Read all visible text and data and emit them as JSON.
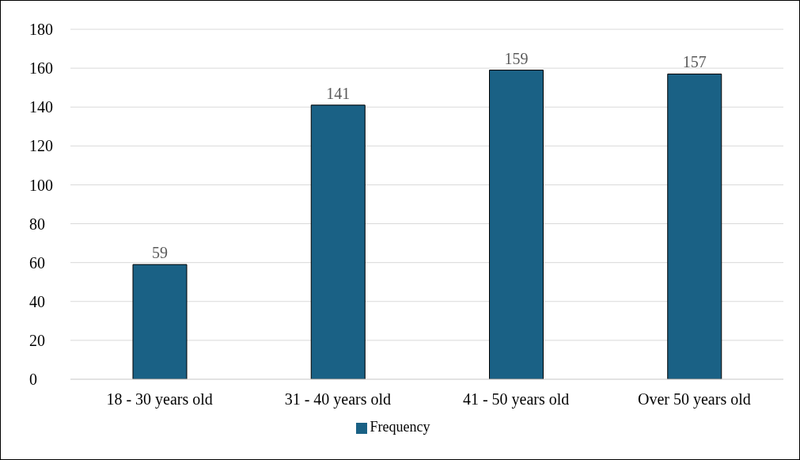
{
  "chart_data": {
    "type": "bar",
    "categories": [
      "18 - 30 years old",
      "31 - 40 years old",
      "41 - 50 years old",
      "Over 50 years old"
    ],
    "series": [
      {
        "name": "Frequency",
        "color": "#1a6185",
        "values": [
          59,
          141,
          159,
          157
        ]
      }
    ],
    "ylim": [
      0,
      180
    ],
    "yticks": [
      0,
      20,
      40,
      60,
      80,
      100,
      120,
      140,
      160,
      180
    ],
    "grid": "y",
    "legend": "bottom",
    "data_labels": true
  }
}
